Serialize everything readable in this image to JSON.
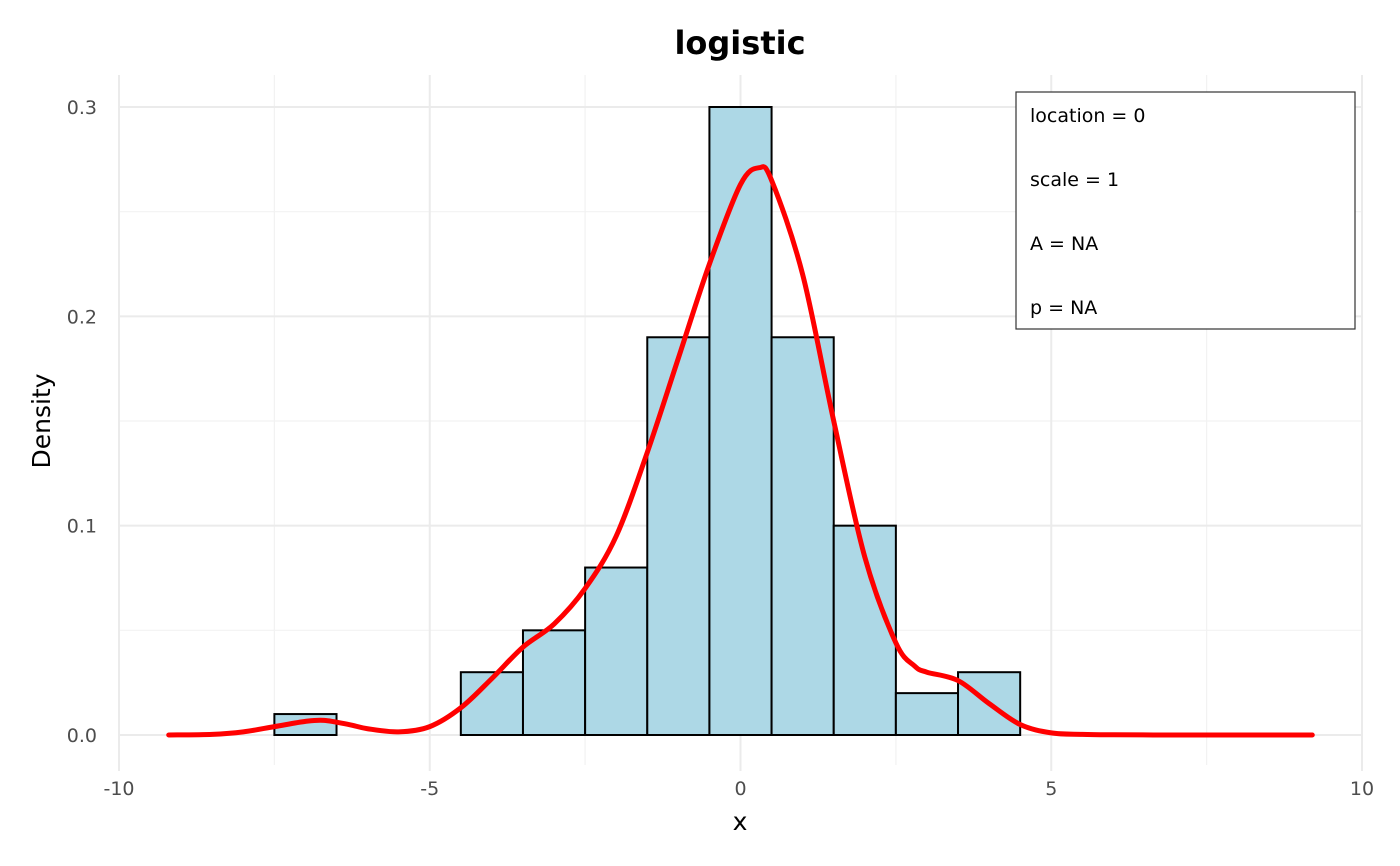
{
  "chart_data": {
    "type": "bar",
    "title": "logistic",
    "xlabel": "x",
    "ylabel": "Density",
    "xlim": [
      -10,
      10
    ],
    "ylim": [
      0,
      0.3
    ],
    "grid": true,
    "x_ticks": [
      -10,
      -5,
      0,
      5,
      10
    ],
    "x_tick_labels": [
      "-10",
      "-5",
      "0",
      "5",
      "10"
    ],
    "y_ticks": [
      0.0,
      0.1,
      0.2,
      0.3
    ],
    "y_tick_labels": [
      "0.0",
      "0.1",
      "0.2",
      "0.3"
    ],
    "histogram": {
      "bin_width": 1,
      "bins": [
        {
          "start": -7.5,
          "end": -6.5,
          "density": 0.01
        },
        {
          "start": -4.5,
          "end": -3.5,
          "density": 0.03
        },
        {
          "start": -3.5,
          "end": -2.5,
          "density": 0.05
        },
        {
          "start": -2.5,
          "end": -1.5,
          "density": 0.08
        },
        {
          "start": -1.5,
          "end": -0.5,
          "density": 0.19
        },
        {
          "start": -0.5,
          "end": 0.5,
          "density": 0.3
        },
        {
          "start": 0.5,
          "end": 1.5,
          "density": 0.19
        },
        {
          "start": 1.5,
          "end": 2.5,
          "density": 0.1
        },
        {
          "start": 2.5,
          "end": 3.5,
          "density": 0.02
        },
        {
          "start": 3.5,
          "end": 4.5,
          "density": 0.03
        }
      ],
      "fill": "#add8e6",
      "stroke": "#000000"
    },
    "density_curve": {
      "color": "#ff0000",
      "x": [
        -9.2,
        -8.5,
        -8.0,
        -7.5,
        -7.0,
        -6.7,
        -6.3,
        -6.0,
        -5.5,
        -5.0,
        -4.5,
        -4.0,
        -3.5,
        -3.0,
        -2.5,
        -2.0,
        -1.5,
        -1.0,
        -0.5,
        0.0,
        0.3,
        0.5,
        1.0,
        1.5,
        2.0,
        2.5,
        2.8,
        3.0,
        3.5,
        4.0,
        4.5,
        5.0,
        5.5,
        6.0,
        7.0,
        8.0,
        9.2
      ],
      "y": [
        0.0,
        0.0003,
        0.0015,
        0.004,
        0.0065,
        0.007,
        0.005,
        0.003,
        0.0015,
        0.004,
        0.013,
        0.027,
        0.042,
        0.053,
        0.07,
        0.095,
        0.135,
        0.18,
        0.225,
        0.263,
        0.271,
        0.265,
        0.22,
        0.15,
        0.085,
        0.044,
        0.033,
        0.03,
        0.026,
        0.015,
        0.005,
        0.001,
        0.0003,
        0.0001,
        0.0,
        0.0,
        0.0
      ]
    },
    "legend": {
      "placement": "top-right",
      "entries": [
        {
          "name": "location",
          "sep": " = ",
          "value": "0"
        },
        {
          "name": "scale",
          "sep": " = ",
          "value": "1"
        },
        {
          "name": "A",
          "sep": " = ",
          "value": "NA"
        },
        {
          "name": "p",
          "sep": " = ",
          "value": "NA"
        }
      ]
    }
  }
}
